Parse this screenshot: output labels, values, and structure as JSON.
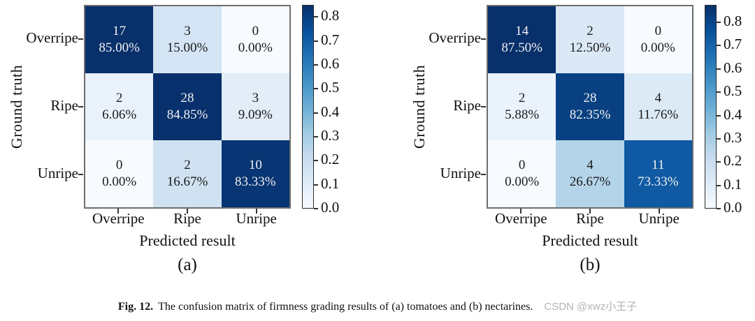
{
  "figure": {
    "caption_label": "Fig. 12.",
    "caption_text": "The confusion matrix of firmness grading results of (a) tomatoes and (b) nectarines.",
    "watermark": "CSDN @xwz小王子"
  },
  "colors": {
    "cmap_name": "Blues",
    "cmap_stops": [
      "#f7fbff",
      "#deebf7",
      "#c6dbef",
      "#9ecae1",
      "#6baed6",
      "#4292c6",
      "#2171b5",
      "#08519c",
      "#08306b"
    ],
    "cell_text_dark": "#1a1a1a",
    "cell_text_light": "#f0f0f0",
    "axis_text": "#111111",
    "matrix_border": "#6e6e6e",
    "colorbar_border": "#2a2a2a",
    "watermark_color": "#b3b3b3"
  },
  "chart_data": [
    {
      "type": "heatmap",
      "title": "(a)",
      "subject": "tomatoes",
      "xlabel": "Predicted result",
      "ylabel": "Ground truth",
      "x_categories": [
        "Overripe",
        "Ripe",
        "Unripe"
      ],
      "y_categories": [
        "Overripe",
        "Ripe",
        "Unripe"
      ],
      "counts": [
        [
          17,
          3,
          0
        ],
        [
          2,
          28,
          3
        ],
        [
          0,
          2,
          10
        ]
      ],
      "percents": [
        [
          "85.00%",
          "15.00%",
          "0.00%"
        ],
        [
          "6.06%",
          "84.85%",
          "9.09%"
        ],
        [
          "0.00%",
          "16.67%",
          "83.33%"
        ]
      ],
      "values": [
        [
          0.85,
          0.15,
          0.0
        ],
        [
          0.0606,
          0.8485,
          0.0909
        ],
        [
          0.0,
          0.1667,
          0.8333
        ]
      ],
      "vmin": 0.0,
      "vmax": 0.85,
      "colorbar_ticks": [
        0.0,
        0.1,
        0.2,
        0.3,
        0.4,
        0.5,
        0.6,
        0.7,
        0.8
      ],
      "colormap": "Blues",
      "legend_position": "right-colorbar",
      "grid": false
    },
    {
      "type": "heatmap",
      "title": "(b)",
      "subject": "nectarines",
      "xlabel": "Predicted result",
      "ylabel": "Ground truth",
      "x_categories": [
        "Overripe",
        "Ripe",
        "Unripe"
      ],
      "y_categories": [
        "Overripe",
        "Ripe",
        "Unripe"
      ],
      "counts": [
        [
          14,
          2,
          0
        ],
        [
          2,
          28,
          4
        ],
        [
          0,
          4,
          11
        ]
      ],
      "percents": [
        [
          "87.50%",
          "12.50%",
          "0.00%"
        ],
        [
          "5.88%",
          "82.35%",
          "11.76%"
        ],
        [
          "0.00%",
          "26.67%",
          "73.33%"
        ]
      ],
      "values": [
        [
          0.875,
          0.125,
          0.0
        ],
        [
          0.0588,
          0.8235,
          0.1176
        ],
        [
          0.0,
          0.2667,
          0.7333
        ]
      ],
      "vmin": 0.0,
      "vmax": 0.875,
      "colorbar_ticks": [
        0.0,
        0.1,
        0.2,
        0.3,
        0.4,
        0.5,
        0.6,
        0.7,
        0.8
      ],
      "colormap": "Blues",
      "legend_position": "right-colorbar",
      "grid": false
    }
  ]
}
